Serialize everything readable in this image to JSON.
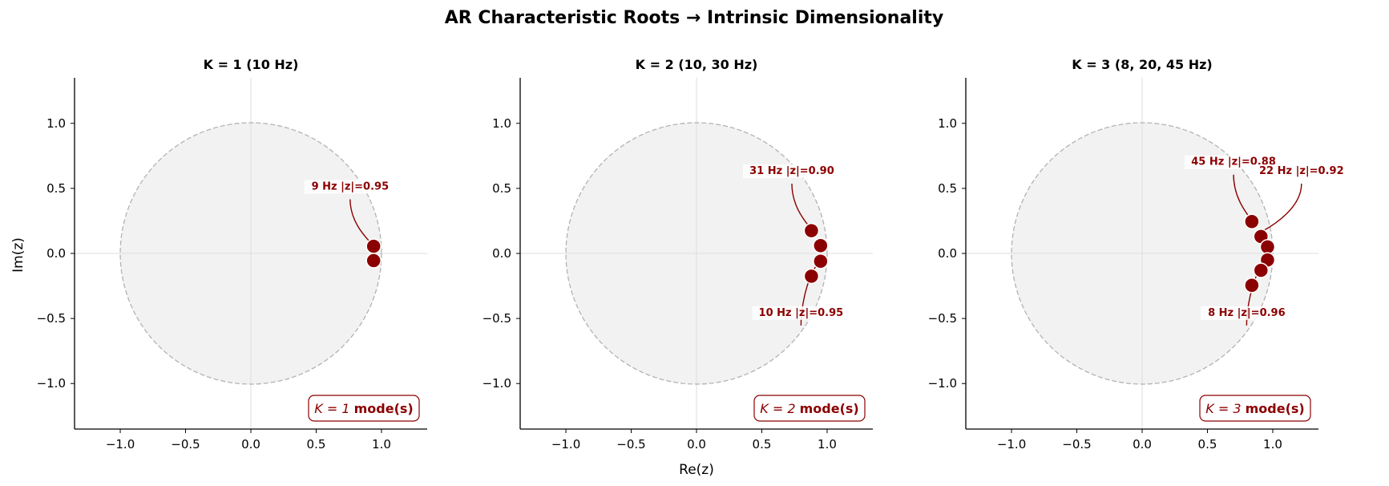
{
  "figure": {
    "title": "AR Characteristic Roots  →  Intrinsic Dimensionality",
    "xlabel": "Re(z)",
    "ylabel": "Im(z)"
  },
  "colors": {
    "root": "#8b0000",
    "disk_fill": "#f2f2f2",
    "circle_stroke": "#b3b3b3",
    "grid": "#dddddd"
  },
  "chart_data": [
    {
      "type": "scatter",
      "title": "K = 1  (10 Hz)",
      "xlim": [
        -1.35,
        1.35
      ],
      "ylim": [
        -1.35,
        1.35
      ],
      "xticks": [
        -1.0,
        -0.5,
        0.0,
        0.5,
        1.0
      ],
      "yticks": [
        -1.0,
        -0.5,
        0.0,
        0.5,
        1.0
      ],
      "tick_labels": [
        "−1.0",
        "−0.5",
        "0.0",
        "0.5",
        "1.0"
      ],
      "roots": [
        {
          "x": 0.94,
          "y": 0.055
        },
        {
          "x": 0.94,
          "y": -0.055
        }
      ],
      "annotations": [
        {
          "text": "9 Hz  |z|=0.95",
          "tx": 0.76,
          "ty": 0.49,
          "ax": 0.91,
          "ay": 0.09
        }
      ],
      "badge": {
        "k_label": "K = 1",
        "mode_label": "mode(s)"
      }
    },
    {
      "type": "scatter",
      "title": "K = 2  (10, 30 Hz)",
      "xlim": [
        -1.35,
        1.35
      ],
      "ylim": [
        -1.35,
        1.35
      ],
      "xticks": [
        -1.0,
        -0.5,
        0.0,
        0.5,
        1.0
      ],
      "yticks": [
        -1.0,
        -0.5,
        0.0,
        0.5,
        1.0
      ],
      "tick_labels": [
        "−1.0",
        "−0.5",
        "0.0",
        "0.5",
        "1.0"
      ],
      "roots": [
        {
          "x": 0.88,
          "y": 0.175
        },
        {
          "x": 0.95,
          "y": 0.06
        },
        {
          "x": 0.95,
          "y": -0.06
        },
        {
          "x": 0.88,
          "y": -0.175
        }
      ],
      "annotations": [
        {
          "text": "31 Hz  |z|=0.90",
          "tx": 0.73,
          "ty": 0.61,
          "ax": 0.86,
          "ay": 0.21
        },
        {
          "text": "10 Hz  |z|=0.95",
          "tx": 0.8,
          "ty": -0.48,
          "ax": 0.95,
          "ay": -0.09
        }
      ],
      "badge": {
        "k_label": "K = 2",
        "mode_label": "mode(s)"
      }
    },
    {
      "type": "scatter",
      "title": "K = 3  (8, 20, 45 Hz)",
      "xlim": [
        -1.35,
        1.35
      ],
      "ylim": [
        -1.35,
        1.35
      ],
      "xticks": [
        -1.0,
        -0.5,
        0.0,
        0.5,
        1.0
      ],
      "yticks": [
        -1.0,
        -0.5,
        0.0,
        0.5,
        1.0
      ],
      "tick_labels": [
        "−1.0",
        "−0.5",
        "0.0",
        "0.5",
        "1.0"
      ],
      "roots": [
        {
          "x": 0.84,
          "y": 0.245
        },
        {
          "x": 0.91,
          "y": 0.13
        },
        {
          "x": 0.96,
          "y": 0.05
        },
        {
          "x": 0.96,
          "y": -0.05
        },
        {
          "x": 0.91,
          "y": -0.13
        },
        {
          "x": 0.84,
          "y": -0.245
        }
      ],
      "annotations": [
        {
          "text": "45 Hz  |z|=0.88",
          "tx": 0.7,
          "ty": 0.68,
          "ax": 0.82,
          "ay": 0.28
        },
        {
          "text": "22 Hz  |z|=0.92",
          "tx": 1.22,
          "ty": 0.61,
          "ax": 0.92,
          "ay": 0.17
        },
        {
          "text": "8 Hz  |z|=0.96",
          "tx": 0.8,
          "ty": -0.48,
          "ax": 0.95,
          "ay": -0.09
        }
      ],
      "badge": {
        "k_label": "K = 3",
        "mode_label": "mode(s)"
      }
    }
  ]
}
